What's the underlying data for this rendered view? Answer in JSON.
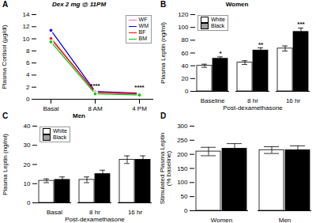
{
  "chart_data": [
    {
      "type": "line",
      "title": "Dex 2 mg @ 11PM",
      "ylabel": "Plasma Cortisol (µg/dl)",
      "categories": [
        "Basal",
        "8 AM",
        "4 PM"
      ],
      "series": [
        {
          "name": "WF",
          "color": "#FF69B4",
          "values": [
            10.2,
            1.1,
            0.8
          ]
        },
        {
          "name": "WM",
          "color": "#0000FF",
          "values": [
            11.4,
            1.3,
            1.0
          ]
        },
        {
          "name": "BF",
          "color": "#FF0000",
          "values": [
            10.0,
            1.2,
            0.9
          ]
        },
        {
          "name": "BM",
          "color": "#00CC00",
          "values": [
            9.5,
            0.9,
            0.7
          ]
        }
      ],
      "marker": "circle",
      "ylim": [
        0,
        14
      ],
      "yticks": [
        0,
        2,
        4,
        6,
        8,
        10,
        12,
        14
      ],
      "grid": false,
      "legend": "upper right",
      "annotations": [
        {
          "text": "A"
        },
        {
          "text": "****",
          "x": "8 AM"
        },
        {
          "text": "****",
          "x": "4 PM"
        }
      ]
    },
    {
      "type": "bar",
      "title": "Women",
      "xlabel": "Post-dexamethasone",
      "ylabel": "Plasma Leptin (ng/ml)",
      "categories": [
        "Baseline",
        "8 hr",
        "16 hr"
      ],
      "series": [
        {
          "name": "White",
          "color": "#FFFFFF",
          "values": [
            40,
            45,
            67
          ],
          "errors": [
            2.5,
            3,
            4
          ]
        },
        {
          "name": "Black",
          "color": "#A0A0A0",
          "values": [
            51,
            64,
            93
          ],
          "errors": [
            3,
            4,
            6
          ]
        }
      ],
      "ylim": [
        0,
        120
      ],
      "yticks": [
        0,
        20,
        40,
        60,
        80,
        100,
        120
      ],
      "grid": false,
      "legend": "upper left",
      "annotations": [
        {
          "text": "B"
        },
        {
          "text": "*",
          "x": "Baseline",
          "series": "Black"
        },
        {
          "text": "**",
          "x": "8 hr",
          "series": "Black"
        },
        {
          "text": "***",
          "x": "16 hr",
          "series": "Black"
        }
      ]
    },
    {
      "type": "bar",
      "title": "Men",
      "xlabel": "Post-dexamethasone",
      "ylabel": "Plasma Leptin (ng/ml)",
      "categories": [
        "Basal",
        "8 hr",
        "16 hr"
      ],
      "series": [
        {
          "name": "White",
          "color": "#FFFFFF",
          "values": [
            11.5,
            12.0,
            22.5
          ],
          "errors": [
            1.0,
            1.5,
            2.0
          ]
        },
        {
          "name": "Black",
          "color": "#A0A0A0",
          "values": [
            12.0,
            15.0,
            22.5
          ],
          "errors": [
            1.5,
            2.0,
            2.0
          ]
        }
      ],
      "ylim": [
        0,
        40
      ],
      "yticks": [
        0,
        10,
        20,
        30,
        40
      ],
      "grid": false,
      "legend": "upper left",
      "annotations": [
        {
          "text": "C"
        }
      ]
    },
    {
      "type": "bar",
      "ylabel": "Stimulated Plasma Leptin\n(% baseline)",
      "categories": [
        "Women",
        "Men"
      ],
      "series": [
        {
          "name": "White",
          "color": "#FFFFFF",
          "values": [
            210,
            215
          ],
          "errors": [
            15,
            12
          ]
        },
        {
          "name": "Black",
          "color": "#A0A0A0",
          "values": [
            220,
            215
          ],
          "errors": [
            18,
            15
          ]
        }
      ],
      "ylim": [
        0,
        300
      ],
      "yticks": [
        0,
        50,
        100,
        150,
        200,
        250,
        300
      ],
      "grid": false,
      "annotations": [
        {
          "text": "D"
        }
      ]
    }
  ]
}
